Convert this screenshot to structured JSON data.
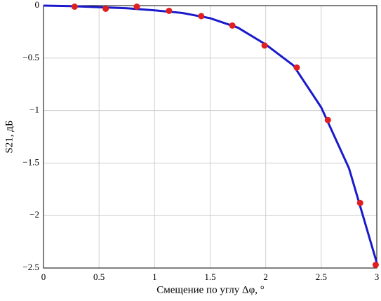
{
  "chart_data": {
    "type": "line",
    "xlabel": "Смещение по углу Δφ, °",
    "ylabel": "S21, дБ",
    "xlim": [
      0,
      3
    ],
    "ylim": [
      -2.5,
      0
    ],
    "xticks": [
      0,
      0.5,
      1,
      1.5,
      2,
      2.5,
      3
    ],
    "yticks": [
      0,
      {
        "value": -0.5,
        "label": "−0.5"
      },
      {
        "value": -1,
        "label": "−1"
      },
      {
        "value": -1.5,
        "label": "−1.5"
      },
      {
        "value": -2,
        "label": "−2"
      },
      {
        "value": -2.5,
        "label": "−2.5"
      }
    ],
    "grid": true,
    "series": [
      {
        "style": "line",
        "color": "#1a1acc",
        "x": [
          0,
          0.25,
          0.5,
          0.75,
          1,
          1.25,
          1.5,
          1.75,
          2,
          2.25,
          2.5,
          2.75,
          3
        ],
        "values": [
          0,
          -0.005,
          -0.015,
          -0.025,
          -0.045,
          -0.07,
          -0.12,
          -0.21,
          -0.37,
          -0.57,
          -0.97,
          -1.55,
          -2.45
        ]
      },
      {
        "style": "points",
        "color": "#e02020",
        "x": [
          0.28,
          0.56,
          0.84,
          1.13,
          1.42,
          1.7,
          1.99,
          2.28,
          2.56,
          2.85,
          2.99
        ],
        "values": [
          -0.01,
          -0.03,
          -0.01,
          -0.05,
          -0.1,
          -0.19,
          -0.38,
          -0.59,
          -1.09,
          -1.88,
          -2.47
        ]
      }
    ]
  }
}
